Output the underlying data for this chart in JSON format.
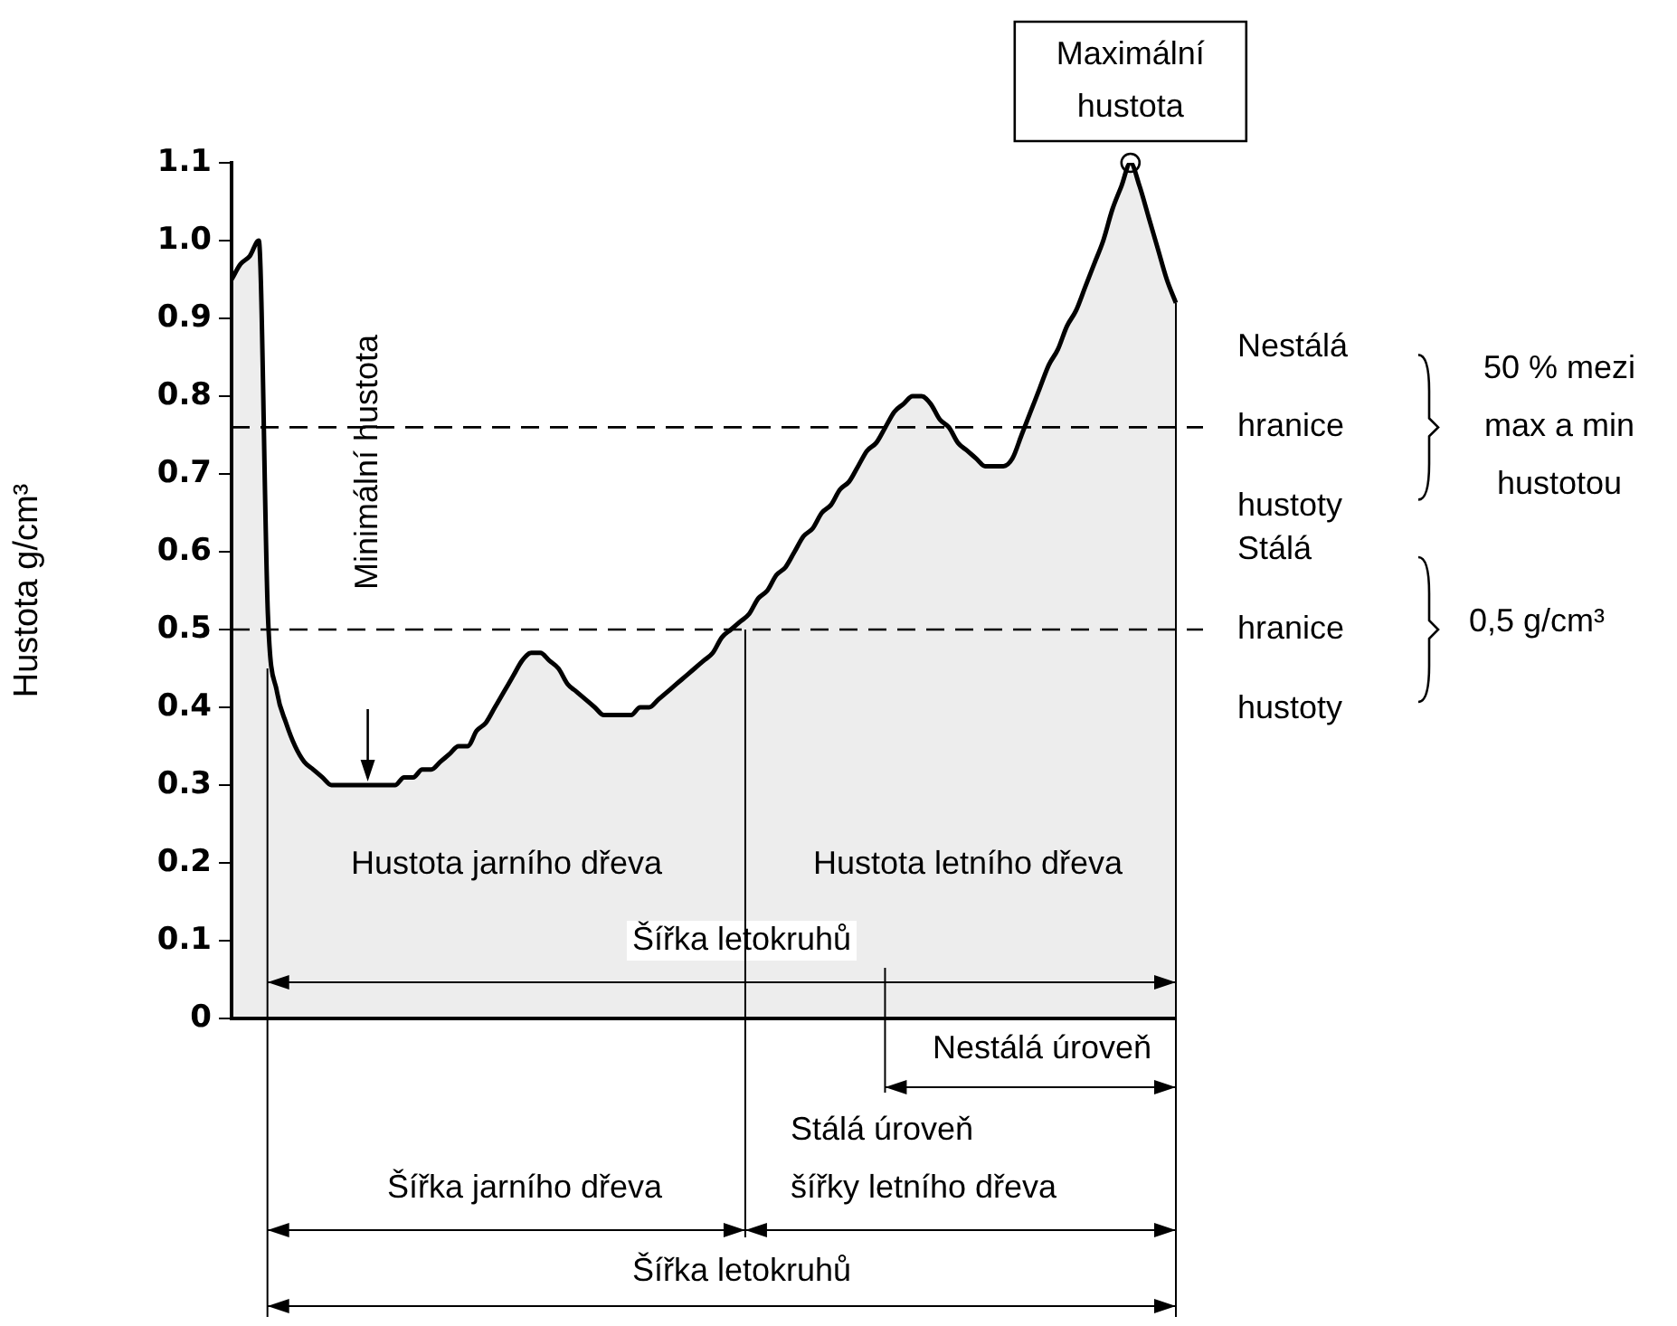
{
  "chart_data": {
    "type": "area",
    "ylabel": "Hustota g/cm³",
    "categories": [
      null,
      null,
      null,
      null,
      null,
      null,
      null,
      null,
      null,
      null,
      null,
      null,
      null,
      null,
      null,
      null,
      null,
      null,
      null,
      null,
      null,
      null,
      null,
      null,
      null,
      null,
      null,
      null,
      null,
      null,
      null,
      null,
      null,
      null,
      null,
      null,
      null,
      null,
      null,
      null,
      null,
      null,
      null,
      null,
      null,
      null,
      null,
      null,
      null,
      null,
      null,
      null,
      null,
      null,
      null,
      null,
      null,
      null,
      null,
      null,
      null,
      null,
      null,
      null,
      null,
      null,
      null,
      null,
      null,
      null,
      null,
      null,
      null,
      null,
      null,
      null,
      null,
      null,
      null,
      null,
      null,
      null,
      null,
      null,
      null,
      null,
      null,
      null,
      null,
      null,
      null,
      null,
      null,
      null,
      null,
      null,
      null,
      null,
      null,
      null,
      null,
      null,
      null,
      null,
      null
    ],
    "series": [
      {
        "color": "#000000",
        "values": [
          0.95,
          0.97,
          0.98,
          1.0,
          0.52,
          0.42,
          0.38,
          0.35,
          0.33,
          0.32,
          0.31,
          0.3,
          0.3,
          0.3,
          0.3,
          0.3,
          0.3,
          0.3,
          0.3,
          0.31,
          0.31,
          0.32,
          0.32,
          0.33,
          0.34,
          0.35,
          0.35,
          0.37,
          0.38,
          0.4,
          0.42,
          0.44,
          0.46,
          0.47,
          0.47,
          0.46,
          0.45,
          0.43,
          0.42,
          0.41,
          0.4,
          0.39,
          0.39,
          0.39,
          0.39,
          0.4,
          0.4,
          0.41,
          0.42,
          0.43,
          0.44,
          0.45,
          0.46,
          0.47,
          0.49,
          0.5,
          0.51,
          0.52,
          0.54,
          0.55,
          0.57,
          0.58,
          0.6,
          0.62,
          0.63,
          0.65,
          0.66,
          0.68,
          0.69,
          0.71,
          0.73,
          0.74,
          0.76,
          0.78,
          0.79,
          0.8,
          0.8,
          0.79,
          0.77,
          0.76,
          0.74,
          0.73,
          0.72,
          0.71,
          0.71,
          0.71,
          0.72,
          0.75,
          0.78,
          0.81,
          0.84,
          0.86,
          0.89,
          0.91,
          0.94,
          0.97,
          1.0,
          1.04,
          1.07,
          1.1,
          1.07,
          1.03,
          0.99,
          0.95,
          0.92
        ]
      }
    ],
    "ylim": [
      0,
      1.1
    ],
    "yticks": [
      0,
      0.1,
      0.2,
      0.3,
      0.4,
      0.5,
      0.6,
      0.7,
      0.8,
      0.9,
      {
        "value": 1,
        "label": "1.0"
      },
      1.1
    ],
    "tick_labels": "y",
    "ref_lines": [
      {
        "axis": "y",
        "value": 0.76,
        "label": "Nestálá\nhranice\nhustoty",
        "color": "#000000",
        "line_style": "dashed"
      },
      {
        "axis": "y",
        "value": 0.5,
        "label": "Stálá\nhranice\nhustoty",
        "color": "#000000",
        "line_style": "dashed"
      }
    ],
    "annotations": [
      {
        "text": "Maximální\nhustota",
        "y": 1.1
      },
      "Minimální hustota",
      "Hustota jarního dřeva",
      "Hustota letního dřeva",
      "Šířka letokruhů",
      "50 % mezi\nmax a min\nhustotou",
      "0,5 g/cm³",
      "Nestálá úroveň",
      "Stálá úroveň\nšířky letního dřeva",
      "Šířka jarního dřeva",
      "Šířka letokruhů"
    ]
  }
}
